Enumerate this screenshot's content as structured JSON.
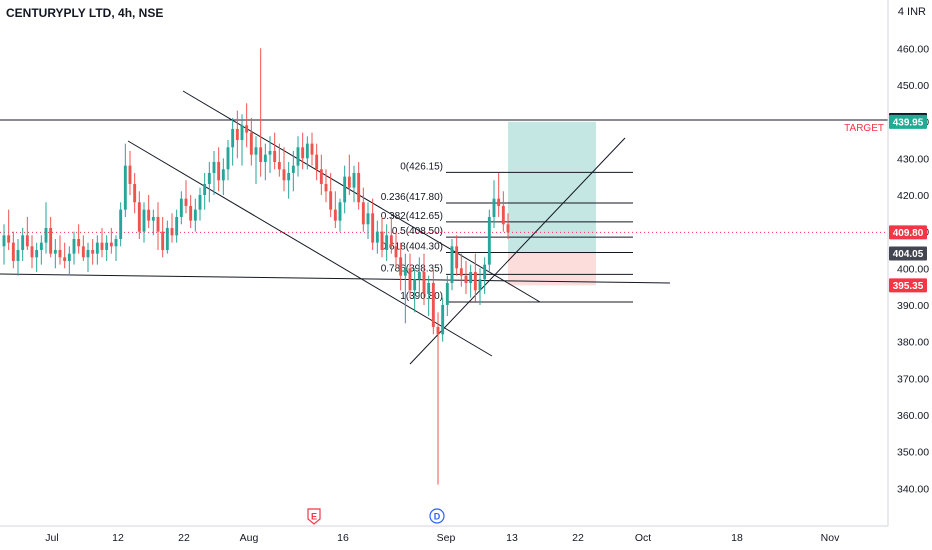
{
  "header": {
    "title": "CENTURYPLY LTD, 4h, NSE",
    "unit": "INR"
  },
  "annotations": {
    "target_label": "TARGET"
  },
  "colors": {
    "up": "#26a69a",
    "down": "#ef5350",
    "line": "#131722",
    "profit": "#b2dfdb",
    "loss": "#fbd7d6",
    "price_tag": "#f23645",
    "target_tag": "#22ab94"
  },
  "event_markers": [
    {
      "letter": "E",
      "date": "Aug 14",
      "color": "#f23645"
    },
    {
      "letter": "D",
      "date": "Sep 1",
      "color": "#2962ff"
    }
  ],
  "price_tags": [
    {
      "label": "440.45",
      "value": 440.45,
      "style": "black"
    },
    {
      "label": "439.95",
      "value": 439.95,
      "style": "green"
    },
    {
      "label": "409.80",
      "value": 409.8,
      "style": "red"
    },
    {
      "label": "404.05",
      "value": 404.05,
      "style": "gray"
    },
    {
      "label": "395.35",
      "value": 395.35,
      "style": "red"
    }
  ],
  "chart_data": {
    "type": "candlestick",
    "title": "CENTURYPLY LTD, 4h, NSE",
    "ylim": [
      332,
      468
    ],
    "y_ticks": [
      340,
      350,
      360,
      370,
      380,
      390,
      400,
      410,
      420,
      430,
      440,
      450,
      460
    ],
    "y_tick_labels": [
      "340.00",
      "350.00",
      "360.00",
      "370.00",
      "380.00",
      "390.00",
      "400.00",
      "410.00",
      "420.00",
      "430.00",
      "440.00",
      "450.00",
      "460.00"
    ],
    "x_tick_labels": [
      "Jul",
      "12",
      "22",
      "Aug",
      "16",
      "Sep",
      "13",
      "22",
      "Oct",
      "18",
      "Nov"
    ],
    "last_price": 409.8,
    "target": 440.45,
    "fibonacci": [
      {
        "label": "0(426.15)",
        "value": 426.15
      },
      {
        "label": "0.236(417.80)",
        "value": 417.8
      },
      {
        "label": "0.382(412.65)",
        "value": 412.65
      },
      {
        "label": "0.5(408.50)",
        "value": 408.5
      },
      {
        "label": "0.618(404.30)",
        "value": 404.3
      },
      {
        "label": "0.786(398.35)",
        "value": 398.35
      },
      {
        "label": "1(390.80)",
        "value": 390.8
      }
    ],
    "position": {
      "entry": 404.05,
      "target": 439.95,
      "stop": 395.35
    },
    "candles": [
      [
        406,
        412,
        401,
        409
      ],
      [
        409,
        416,
        405,
        407
      ],
      [
        407,
        410,
        400,
        402
      ],
      [
        402,
        408,
        398,
        405
      ],
      [
        405,
        411,
        402,
        409
      ],
      [
        409,
        414,
        405,
        406
      ],
      [
        406,
        409,
        400,
        403
      ],
      [
        403,
        407,
        399,
        405
      ],
      [
        405,
        409,
        401,
        407
      ],
      [
        407,
        418,
        404,
        411
      ],
      [
        411,
        414,
        403,
        404
      ],
      [
        404,
        408,
        400,
        405
      ],
      [
        405,
        409,
        401,
        403
      ],
      [
        403,
        407,
        400,
        402
      ],
      [
        402,
        406,
        398,
        404
      ],
      [
        404,
        410,
        401,
        408
      ],
      [
        408,
        412,
        404,
        406
      ],
      [
        406,
        409,
        402,
        403
      ],
      [
        403,
        407,
        399,
        405
      ],
      [
        405,
        408,
        401,
        404
      ],
      [
        404,
        409,
        401,
        407
      ],
      [
        407,
        411,
        403,
        405
      ],
      [
        405,
        409,
        402,
        407
      ],
      [
        407,
        411,
        404,
        406
      ],
      [
        406,
        409,
        402,
        408
      ],
      [
        408,
        418,
        406,
        416
      ],
      [
        416,
        434,
        414,
        428
      ],
      [
        428,
        432,
        420,
        423
      ],
      [
        423,
        426,
        415,
        418
      ],
      [
        418,
        421,
        408,
        410
      ],
      [
        410,
        418,
        407,
        416
      ],
      [
        416,
        420,
        411,
        413
      ],
      [
        413,
        416,
        409,
        414
      ],
      [
        414,
        418,
        405,
        410
      ],
      [
        410,
        414,
        403,
        405
      ],
      [
        405,
        413,
        404,
        411
      ],
      [
        411,
        415,
        407,
        409
      ],
      [
        409,
        416,
        407,
        414
      ],
      [
        414,
        421,
        412,
        419
      ],
      [
        419,
        424,
        415,
        417
      ],
      [
        417,
        420,
        411,
        413
      ],
      [
        413,
        419,
        410,
        416
      ],
      [
        416,
        422,
        413,
        420
      ],
      [
        420,
        426,
        416,
        423
      ],
      [
        423,
        429,
        418,
        426
      ],
      [
        426,
        432,
        420,
        429
      ],
      [
        429,
        433,
        421,
        424
      ],
      [
        424,
        430,
        420,
        427
      ],
      [
        427,
        435,
        424,
        433
      ],
      [
        433,
        441,
        428,
        438
      ],
      [
        438,
        443,
        430,
        435
      ],
      [
        435,
        442,
        428,
        439
      ],
      [
        439,
        445,
        433,
        437
      ],
      [
        437,
        441,
        428,
        431
      ],
      [
        431,
        436,
        423,
        433
      ],
      [
        433,
        460,
        425,
        429
      ],
      [
        429,
        434,
        424,
        431
      ],
      [
        431,
        436,
        426,
        432
      ],
      [
        432,
        437,
        427,
        429
      ],
      [
        429,
        434,
        425,
        427
      ],
      [
        427,
        433,
        421,
        424
      ],
      [
        424,
        429,
        419,
        426
      ],
      [
        426,
        432,
        421,
        428
      ],
      [
        428,
        436,
        425,
        433
      ],
      [
        433,
        437,
        427,
        430
      ],
      [
        430,
        436,
        427,
        434
      ],
      [
        434,
        437,
        428,
        431
      ],
      [
        431,
        434,
        424,
        427
      ],
      [
        427,
        431,
        420,
        423
      ],
      [
        423,
        427,
        418,
        421
      ],
      [
        421,
        426,
        414,
        416
      ],
      [
        416,
        421,
        411,
        413
      ],
      [
        413,
        419,
        410,
        418
      ],
      [
        418,
        428,
        415,
        425
      ],
      [
        425,
        431,
        420,
        422
      ],
      [
        422,
        428,
        418,
        426
      ],
      [
        426,
        429,
        416,
        418
      ],
      [
        418,
        422,
        410,
        412
      ],
      [
        412,
        418,
        408,
        415
      ],
      [
        415,
        419,
        405,
        407
      ],
      [
        407,
        413,
        404,
        410
      ],
      [
        410,
        414,
        403,
        405
      ],
      [
        405,
        412,
        402,
        409
      ],
      [
        409,
        414,
        404,
        406
      ],
      [
        406,
        410,
        400,
        403
      ],
      [
        403,
        407,
        394,
        398
      ],
      [
        398,
        404,
        385,
        400
      ],
      [
        400,
        404,
        392,
        394
      ],
      [
        394,
        400,
        388,
        397
      ],
      [
        397,
        403,
        392,
        399
      ],
      [
        399,
        404,
        390,
        393
      ],
      [
        393,
        398,
        387,
        396
      ],
      [
        396,
        400,
        382,
        384
      ],
      [
        384,
        388,
        341,
        382
      ],
      [
        382,
        392,
        380,
        390
      ],
      [
        390,
        398,
        387,
        396
      ],
      [
        396,
        408,
        394,
        406
      ],
      [
        406,
        409,
        398,
        400
      ],
      [
        400,
        404,
        395,
        398
      ],
      [
        398,
        402,
        393,
        396
      ],
      [
        396,
        401,
        392,
        399
      ],
      [
        399,
        404,
        391,
        394
      ],
      [
        394,
        400,
        390,
        397
      ],
      [
        397,
        403,
        393,
        401
      ],
      [
        401,
        416,
        399,
        414
      ],
      [
        414,
        424,
        411,
        419
      ],
      [
        419,
        426,
        414,
        417
      ],
      [
        417,
        421,
        410,
        412
      ],
      [
        412,
        415,
        408,
        409.8
      ]
    ]
  }
}
